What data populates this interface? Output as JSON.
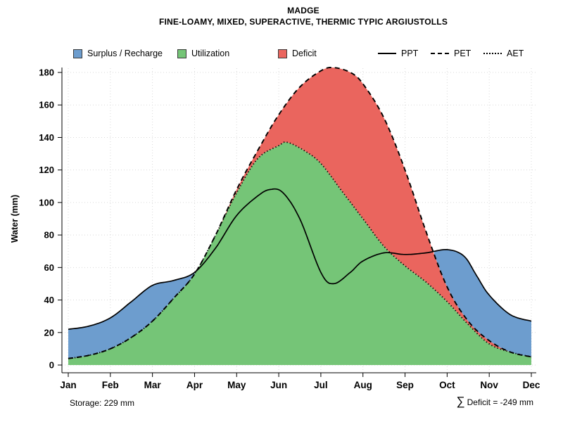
{
  "chart_data": {
    "type": "area",
    "title": "MADGE",
    "subtitle": "FINE-LOAMY, MIXED, SUPERACTIVE, THERMIC TYPIC ARGIUSTOLLS",
    "ylabel": "Water (mm)",
    "x_unit": "month index (0=Jan .. 11=Dec)",
    "months": [
      "Jan",
      "Feb",
      "Mar",
      "Apr",
      "May",
      "Jun",
      "Jul",
      "Aug",
      "Sep",
      "Oct",
      "Nov",
      "Dec"
    ],
    "ylim": [
      0,
      190
    ],
    "yticks": [
      0,
      20,
      40,
      60,
      80,
      100,
      120,
      140,
      160,
      180
    ],
    "grid": true,
    "legend": {
      "surplus": "Surplus / Recharge",
      "utilization": "Utilization",
      "deficit": "Deficit",
      "ppt": "PPT",
      "pet": "PET",
      "aet": "AET"
    },
    "colors": {
      "surplus": "#6d9dce",
      "utilization": "#75c577",
      "deficit": "#ea655e",
      "line": "#000000",
      "grid": "#d9d9d9"
    },
    "series": {
      "PPT": {
        "style": "solid",
        "points": [
          [
            0,
            22
          ],
          [
            0.5,
            24
          ],
          [
            1,
            29
          ],
          [
            1.5,
            39
          ],
          [
            2,
            49
          ],
          [
            2.5,
            52
          ],
          [
            3,
            57
          ],
          [
            3.5,
            72
          ],
          [
            4,
            92
          ],
          [
            4.5,
            104
          ],
          [
            4.8,
            108
          ],
          [
            5.1,
            106
          ],
          [
            5.5,
            90
          ],
          [
            6,
            57
          ],
          [
            6.3,
            50
          ],
          [
            6.7,
            57
          ],
          [
            7,
            64
          ],
          [
            7.5,
            69
          ],
          [
            8,
            68
          ],
          [
            8.5,
            69
          ],
          [
            9,
            71
          ],
          [
            9.4,
            67
          ],
          [
            9.7,
            55
          ],
          [
            10,
            43
          ],
          [
            10.5,
            31
          ],
          [
            11,
            27
          ]
        ]
      },
      "PET": {
        "style": "dashed",
        "points": [
          [
            0,
            4
          ],
          [
            0.5,
            6
          ],
          [
            1,
            10
          ],
          [
            1.5,
            17
          ],
          [
            2,
            27
          ],
          [
            2.5,
            41
          ],
          [
            3,
            56
          ],
          [
            3.5,
            80
          ],
          [
            4,
            108
          ],
          [
            4.5,
            132
          ],
          [
            5,
            154
          ],
          [
            5.5,
            171
          ],
          [
            6,
            181
          ],
          [
            6.3,
            183
          ],
          [
            6.7,
            180
          ],
          [
            7,
            173
          ],
          [
            7.5,
            152
          ],
          [
            8,
            120
          ],
          [
            8.5,
            82
          ],
          [
            9,
            48
          ],
          [
            9.5,
            27
          ],
          [
            10,
            15
          ],
          [
            10.5,
            8
          ],
          [
            11,
            5
          ]
        ]
      },
      "AET": {
        "style": "dotted",
        "points": [
          [
            0,
            4
          ],
          [
            0.5,
            6
          ],
          [
            1,
            10
          ],
          [
            1.5,
            17
          ],
          [
            2,
            27
          ],
          [
            2.5,
            41
          ],
          [
            3,
            56
          ],
          [
            3.5,
            80
          ],
          [
            4,
            106
          ],
          [
            4.5,
            127
          ],
          [
            5,
            135
          ],
          [
            5.2,
            137
          ],
          [
            5.6,
            132
          ],
          [
            6,
            124
          ],
          [
            6.5,
            107
          ],
          [
            7,
            90
          ],
          [
            7.5,
            73
          ],
          [
            8,
            61
          ],
          [
            8.5,
            51
          ],
          [
            9,
            39
          ],
          [
            9.5,
            25
          ],
          [
            10,
            13
          ],
          [
            10.5,
            8
          ],
          [
            11,
            5
          ]
        ]
      }
    },
    "regions": [
      {
        "name": "surplus",
        "rule": "where PPT > PET, fill between PET and PPT"
      },
      {
        "name": "utilization",
        "rule": "fill between 0 and AET"
      },
      {
        "name": "deficit",
        "rule": "where PET > AET, fill between AET and PET"
      }
    ],
    "annotations": {
      "storage": "Storage: 229 mm",
      "sigma": "∑",
      "deficit_total": " Deficit = -249 mm"
    }
  }
}
